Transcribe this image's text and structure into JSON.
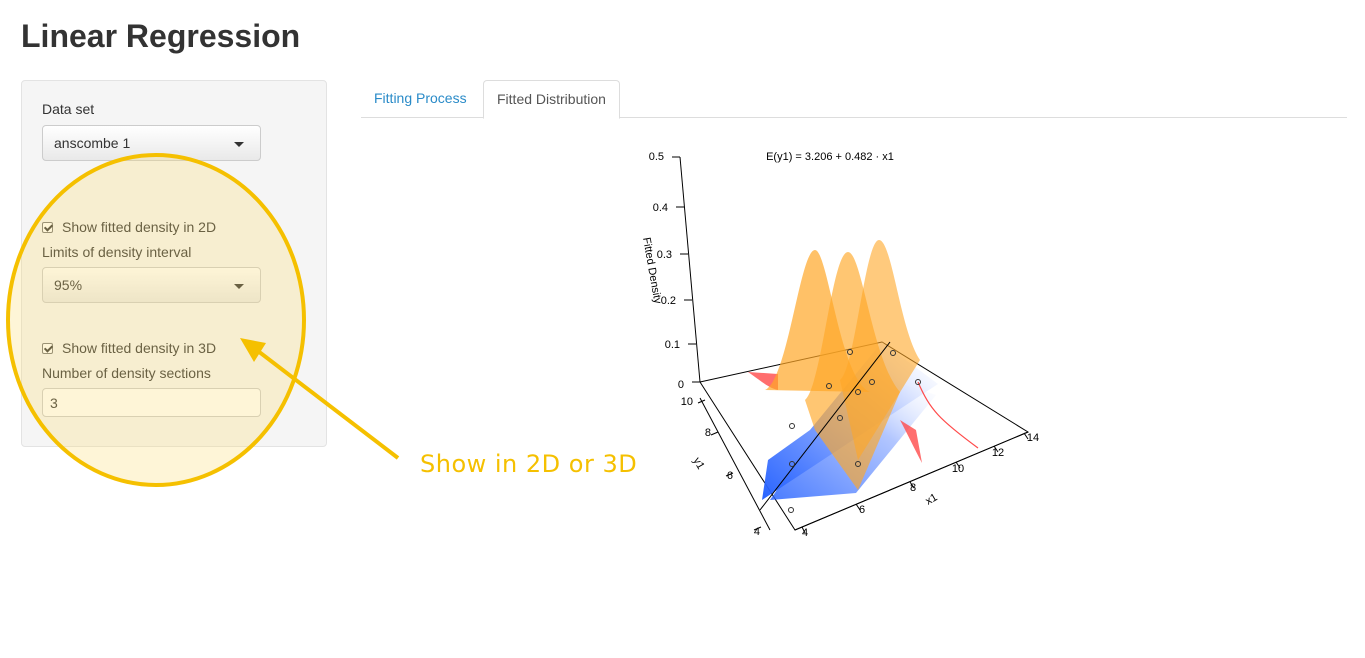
{
  "app_title": "Linear Regression",
  "sidebar": {
    "dataset_label": "Data set",
    "dataset_value": "anscombe 1",
    "show_2d_label": "Show fitted density in 2D",
    "show_2d_checked": true,
    "interval_label": "Limits of density interval",
    "interval_value": "95%",
    "show_3d_label": "Show fitted density in 3D",
    "show_3d_checked": true,
    "sections_label": "Number of density sections",
    "sections_value": "3"
  },
  "tabs": [
    {
      "label": "Fitting Process",
      "active": false
    },
    {
      "label": "Fitted Distribution",
      "active": true
    }
  ],
  "annotation": {
    "text": "Show in 2D or 3D",
    "color": "#f5c000"
  },
  "plot": {
    "equation": "E(y1) = 3.206 + 0.482 · x1",
    "z_label": "Fitted Density",
    "z_ticks": [
      "0",
      "0.1",
      "0.2",
      "0.3",
      "0.4",
      "0.5"
    ],
    "y_label": "y1",
    "y_ticks": [
      "4",
      "6",
      "8",
      "10"
    ],
    "x_label": "x1",
    "x_ticks": [
      "4",
      "6",
      "8",
      "10",
      "12",
      "14"
    ],
    "colors": {
      "density": "#ffa726",
      "plane_blue": "#1e5cff",
      "tail_red": "#ff3b3b"
    }
  }
}
